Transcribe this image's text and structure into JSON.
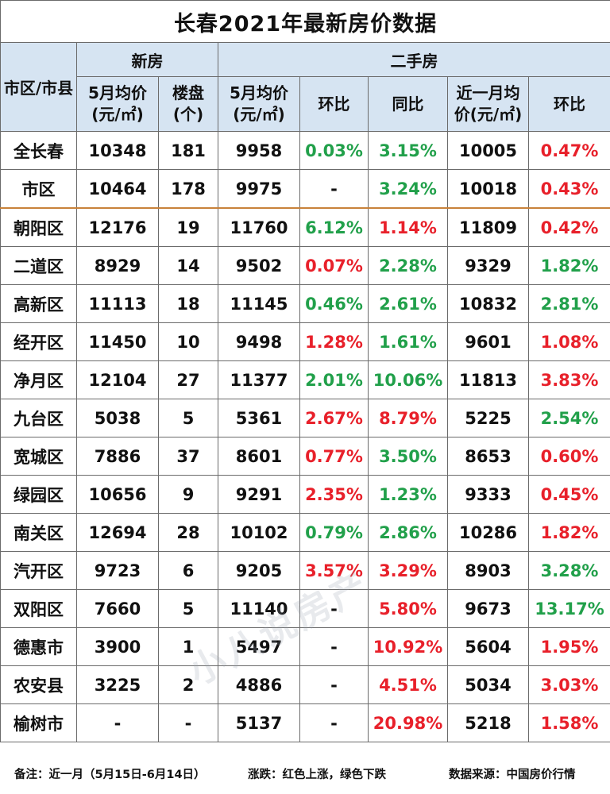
{
  "title": "长春2021年最新房价数据",
  "header": {
    "area": "市区/市县",
    "new_group": "新房",
    "second_group": "二手房",
    "new_avg": "5月均价(元/㎡)",
    "new_projects": "楼盘(个)",
    "sh_avg": "5月均价(元/㎡)",
    "sh_mom": "环比",
    "sh_yoy": "同比",
    "recent_avg": "近一月均价(元/㎡)",
    "recent_mom": "环比"
  },
  "colors": {
    "up": "#e8202a",
    "down": "#21a04a",
    "header_bg": "#d6e4f2"
  },
  "rows": [
    {
      "name": "全长春",
      "new_avg": "10348",
      "projects": "181",
      "sh_avg": "9958",
      "mom": "0.03%",
      "mom_c": "green",
      "yoy": "3.15%",
      "yoy_c": "green",
      "recent": "10005",
      "recent_mom": "0.47%",
      "rm_c": "red"
    },
    {
      "name": "市区",
      "new_avg": "10464",
      "projects": "178",
      "sh_avg": "9975",
      "mom": "-",
      "mom_c": "plain",
      "yoy": "3.24%",
      "yoy_c": "green",
      "recent": "10018",
      "recent_mom": "0.43%",
      "rm_c": "red"
    },
    {
      "name": "朝阳区",
      "new_avg": "12176",
      "projects": "19",
      "sh_avg": "11760",
      "mom": "6.12%",
      "mom_c": "green",
      "yoy": "1.14%",
      "yoy_c": "red",
      "recent": "11809",
      "recent_mom": "0.42%",
      "rm_c": "red"
    },
    {
      "name": "二道区",
      "new_avg": "8929",
      "projects": "14",
      "sh_avg": "9502",
      "mom": "0.07%",
      "mom_c": "red",
      "yoy": "2.28%",
      "yoy_c": "green",
      "recent": "9329",
      "recent_mom": "1.82%",
      "rm_c": "green"
    },
    {
      "name": "高新区",
      "new_avg": "11113",
      "projects": "18",
      "sh_avg": "11145",
      "mom": "0.46%",
      "mom_c": "green",
      "yoy": "2.61%",
      "yoy_c": "green",
      "recent": "10832",
      "recent_mom": "2.81%",
      "rm_c": "green"
    },
    {
      "name": "经开区",
      "new_avg": "11450",
      "projects": "10",
      "sh_avg": "9498",
      "mom": "1.28%",
      "mom_c": "red",
      "yoy": "1.61%",
      "yoy_c": "green",
      "recent": "9601",
      "recent_mom": "1.08%",
      "rm_c": "red"
    },
    {
      "name": "净月区",
      "new_avg": "12104",
      "projects": "27",
      "sh_avg": "11377",
      "mom": "2.01%",
      "mom_c": "green",
      "yoy": "10.06%",
      "yoy_c": "green",
      "recent": "11813",
      "recent_mom": "3.83%",
      "rm_c": "red"
    },
    {
      "name": "九台区",
      "new_avg": "5038",
      "projects": "5",
      "sh_avg": "5361",
      "mom": "2.67%",
      "mom_c": "red",
      "yoy": "8.79%",
      "yoy_c": "red",
      "recent": "5225",
      "recent_mom": "2.54%",
      "rm_c": "green"
    },
    {
      "name": "宽城区",
      "new_avg": "7886",
      "projects": "37",
      "sh_avg": "8601",
      "mom": "0.77%",
      "mom_c": "red",
      "yoy": "3.50%",
      "yoy_c": "green",
      "recent": "8653",
      "recent_mom": "0.60%",
      "rm_c": "red"
    },
    {
      "name": "绿园区",
      "new_avg": "10656",
      "projects": "9",
      "sh_avg": "9291",
      "mom": "2.35%",
      "mom_c": "red",
      "yoy": "1.23%",
      "yoy_c": "green",
      "recent": "9333",
      "recent_mom": "0.45%",
      "rm_c": "red"
    },
    {
      "name": "南关区",
      "new_avg": "12694",
      "projects": "28",
      "sh_avg": "10102",
      "mom": "0.79%",
      "mom_c": "green",
      "yoy": "2.86%",
      "yoy_c": "green",
      "recent": "10286",
      "recent_mom": "1.82%",
      "rm_c": "red"
    },
    {
      "name": "汽开区",
      "new_avg": "9723",
      "projects": "6",
      "sh_avg": "9205",
      "mom": "3.57%",
      "mom_c": "red",
      "yoy": "3.29%",
      "yoy_c": "red",
      "recent": "8903",
      "recent_mom": "3.28%",
      "rm_c": "green"
    },
    {
      "name": "双阳区",
      "new_avg": "7660",
      "projects": "5",
      "sh_avg": "11140",
      "mom": "-",
      "mom_c": "plain",
      "yoy": "5.80%",
      "yoy_c": "red",
      "recent": "9673",
      "recent_mom": "13.17%",
      "rm_c": "green"
    },
    {
      "name": "德惠市",
      "new_avg": "3900",
      "projects": "1",
      "sh_avg": "5497",
      "mom": "-",
      "mom_c": "plain",
      "yoy": "10.92%",
      "yoy_c": "red",
      "recent": "5604",
      "recent_mom": "1.95%",
      "rm_c": "red"
    },
    {
      "name": "农安县",
      "new_avg": "3225",
      "projects": "2",
      "sh_avg": "4886",
      "mom": "-",
      "mom_c": "plain",
      "yoy": "4.51%",
      "yoy_c": "red",
      "recent": "5034",
      "recent_mom": "3.03%",
      "rm_c": "red"
    },
    {
      "name": "榆树市",
      "new_avg": "-",
      "projects": "-",
      "sh_avg": "5137",
      "mom": "-",
      "mom_c": "plain",
      "yoy": "20.98%",
      "yoy_c": "red",
      "recent": "5218",
      "recent_mom": "1.58%",
      "rm_c": "red"
    }
  ],
  "watermark": "小八说房产",
  "footer": {
    "note": "备注：近一月（5月15日-6月14日）",
    "legend": "涨跌：红色上涨，绿色下跌",
    "source": "数据来源：中国房价行情"
  }
}
